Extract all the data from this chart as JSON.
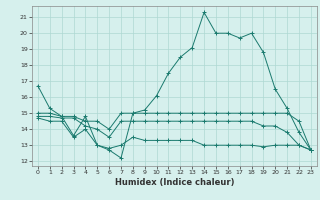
{
  "xlabel": "Humidex (Indice chaleur)",
  "xlim": [
    -0.5,
    23.5
  ],
  "ylim": [
    11.7,
    21.7
  ],
  "yticks": [
    12,
    13,
    14,
    15,
    16,
    17,
    18,
    19,
    20,
    21
  ],
  "xticks": [
    0,
    1,
    2,
    3,
    4,
    5,
    6,
    7,
    8,
    9,
    10,
    11,
    12,
    13,
    14,
    15,
    16,
    17,
    18,
    19,
    20,
    21,
    22,
    23
  ],
  "bg_color": "#d6f0ed",
  "grid_color": "#aed8d3",
  "line_color": "#1a7a6e",
  "lines": [
    {
      "x": [
        0,
        1,
        2,
        3,
        4,
        5,
        6,
        7,
        8,
        9,
        10,
        11,
        12,
        13,
        14,
        15,
        16,
        17,
        18,
        19,
        20,
        21,
        22,
        23
      ],
      "y": [
        16.7,
        15.3,
        14.8,
        13.6,
        14.8,
        13.0,
        12.7,
        12.2,
        15.0,
        15.2,
        16.1,
        17.5,
        18.5,
        19.1,
        21.3,
        20.0,
        20.0,
        19.7,
        20.0,
        18.8,
        16.5,
        15.3,
        13.8,
        12.7
      ]
    },
    {
      "x": [
        0,
        1,
        2,
        3,
        4,
        5,
        6,
        7,
        8,
        9,
        10,
        11,
        12,
        13,
        14,
        15,
        16,
        17,
        18,
        19,
        20,
        21,
        22,
        23
      ],
      "y": [
        15.0,
        15.0,
        14.8,
        14.8,
        14.5,
        14.5,
        14.0,
        15.0,
        15.0,
        15.0,
        15.0,
        15.0,
        15.0,
        15.0,
        15.0,
        15.0,
        15.0,
        15.0,
        15.0,
        15.0,
        15.0,
        15.0,
        14.5,
        12.7
      ]
    },
    {
      "x": [
        0,
        1,
        2,
        3,
        4,
        5,
        6,
        7,
        8,
        9,
        10,
        11,
        12,
        13,
        14,
        15,
        16,
        17,
        18,
        19,
        20,
        21,
        22,
        23
      ],
      "y": [
        14.8,
        14.8,
        14.7,
        14.7,
        14.2,
        14.0,
        13.5,
        14.5,
        14.5,
        14.5,
        14.5,
        14.5,
        14.5,
        14.5,
        14.5,
        14.5,
        14.5,
        14.5,
        14.5,
        14.2,
        14.2,
        13.8,
        13.0,
        12.7
      ]
    },
    {
      "x": [
        0,
        1,
        2,
        3,
        4,
        5,
        6,
        7,
        8,
        9,
        10,
        11,
        12,
        13,
        14,
        15,
        16,
        17,
        18,
        19,
        20,
        21,
        22,
        23
      ],
      "y": [
        14.7,
        14.5,
        14.5,
        13.5,
        14.0,
        13.0,
        12.8,
        13.0,
        13.5,
        13.3,
        13.3,
        13.3,
        13.3,
        13.3,
        13.0,
        13.0,
        13.0,
        13.0,
        13.0,
        12.9,
        13.0,
        13.0,
        13.0,
        12.7
      ]
    }
  ]
}
